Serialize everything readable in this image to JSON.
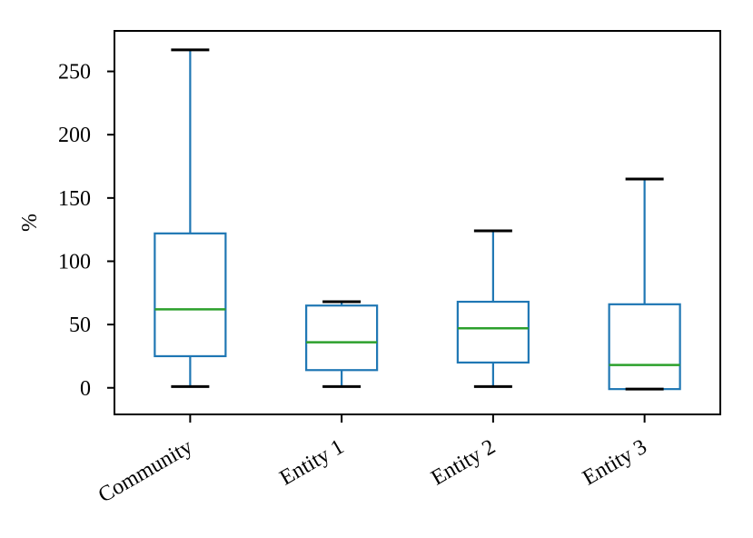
{
  "chart_data": {
    "type": "boxplot",
    "title": "",
    "xlabel": "",
    "ylabel": "%",
    "categories": [
      "Community",
      "Entity 1",
      "Entity 2",
      "Entity 3"
    ],
    "series": [
      {
        "name": "Community",
        "whislo": 1,
        "q1": 25,
        "med": 62,
        "q3": 122,
        "whishi": 267
      },
      {
        "name": "Entity 1",
        "whislo": 1,
        "q1": 14,
        "med": 36,
        "q3": 65,
        "whishi": 68
      },
      {
        "name": "Entity 2",
        "whislo": 1,
        "q1": 20,
        "med": 47,
        "q3": 68,
        "whishi": 124
      },
      {
        "name": "Entity 3",
        "whislo": -1,
        "q1": -1,
        "med": 18,
        "q3": 66,
        "whishi": 165
      }
    ],
    "yticks": [
      0,
      50,
      100,
      150,
      200,
      250
    ],
    "ylim": [
      -21,
      282
    ],
    "x_tick_rotation_deg": 30,
    "legend": "none",
    "grid": false,
    "colors": {
      "box": "#1f77b4",
      "whisker": "#1f77b4",
      "median": "#2ca02c",
      "cap": "#000000",
      "axis": "#000000",
      "background": "#ffffff"
    }
  }
}
